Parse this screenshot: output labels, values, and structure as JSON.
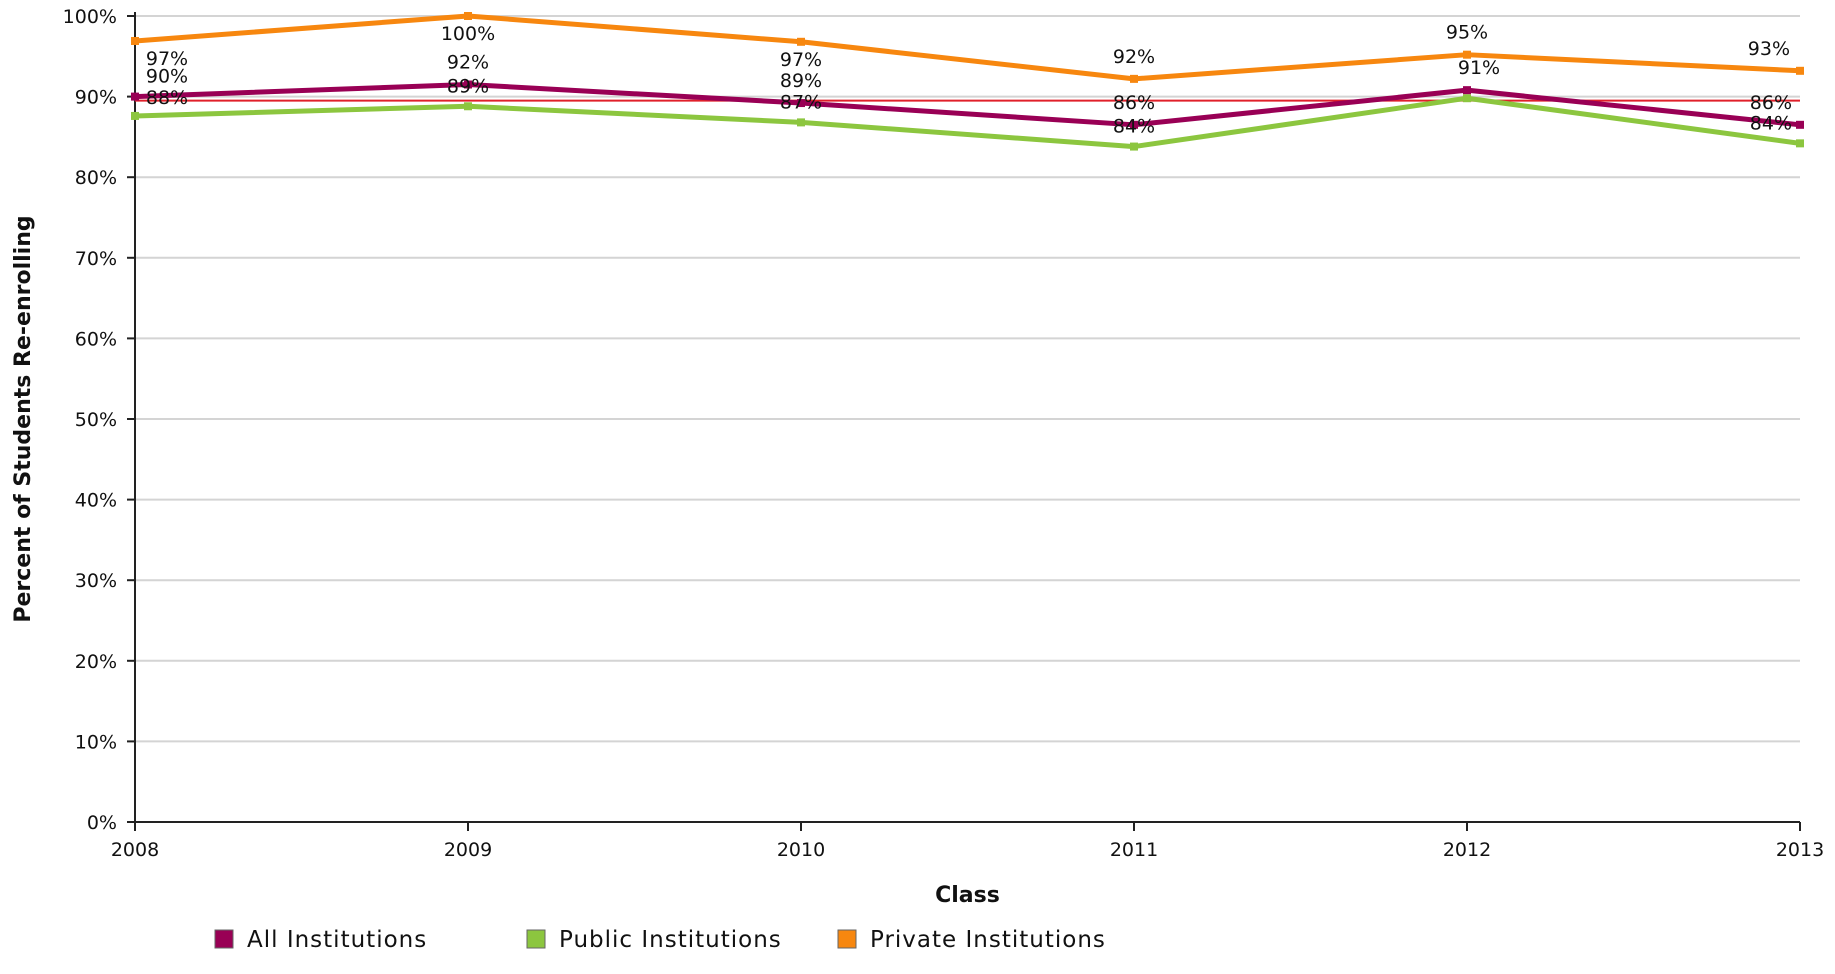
{
  "chart_data": {
    "type": "line",
    "xlabel": "Class",
    "ylabel": "Percent of Students Re-enrolling",
    "categories": [
      "2008",
      "2009",
      "2010",
      "2011",
      "2012",
      "2013"
    ],
    "ylim": [
      0,
      100
    ],
    "yticks": [
      0,
      10,
      20,
      30,
      40,
      50,
      60,
      70,
      80,
      90,
      100
    ],
    "ytick_labels": [
      "0%",
      "10%",
      "20%",
      "30%",
      "40%",
      "50%",
      "60%",
      "70%",
      "80%",
      "90%",
      "100%"
    ],
    "grid": true,
    "legend_position": "bottom-left",
    "series": [
      {
        "name": "All Institutions",
        "color": "#990055",
        "values": [
          90,
          91.5,
          89.2,
          86.5,
          90.8,
          86.5
        ],
        "labels": [
          "90%",
          "92%",
          "89%",
          "86%",
          "91%",
          "86%"
        ]
      },
      {
        "name": "Public Institutions",
        "color": "#8cc63f",
        "values": [
          87.6,
          88.8,
          86.8,
          83.8,
          89.8,
          84.2
        ],
        "labels": [
          "88%",
          "89%",
          "87%",
          "84%",
          "",
          "84%"
        ]
      },
      {
        "name": "Private Institutions",
        "color": "#f7870f",
        "values": [
          96.9,
          100,
          96.8,
          92.2,
          95.2,
          93.2
        ],
        "labels": [
          "97%",
          "100%",
          "97%",
          "92%",
          "95%",
          "93%"
        ]
      }
    ],
    "reference_line": {
      "value": 89.5,
      "color": "#e0202a"
    }
  }
}
